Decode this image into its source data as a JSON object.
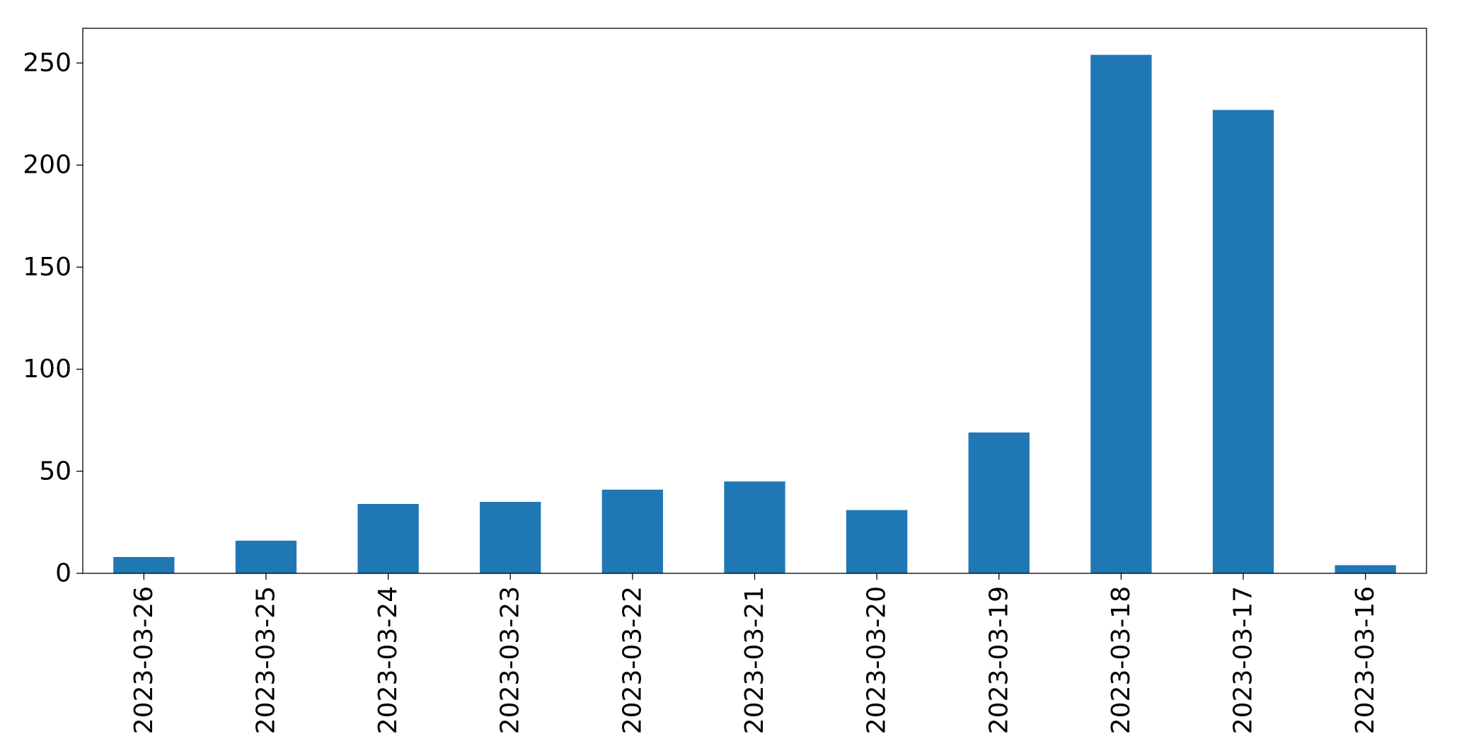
{
  "chart_data": {
    "type": "bar",
    "categories": [
      "2023-03-26",
      "2023-03-25",
      "2023-03-24",
      "2023-03-23",
      "2023-03-22",
      "2023-03-21",
      "2023-03-20",
      "2023-03-19",
      "2023-03-18",
      "2023-03-17",
      "2023-03-16"
    ],
    "values": [
      8,
      16,
      34,
      35,
      41,
      45,
      31,
      69,
      254,
      227,
      4
    ],
    "title": "",
    "xlabel": "",
    "ylabel": "",
    "ylim": [
      0,
      267
    ],
    "yticks": [
      0,
      50,
      100,
      150,
      200,
      250
    ],
    "bar_color": "#1f77b4",
    "grid": false,
    "legend": "none"
  }
}
